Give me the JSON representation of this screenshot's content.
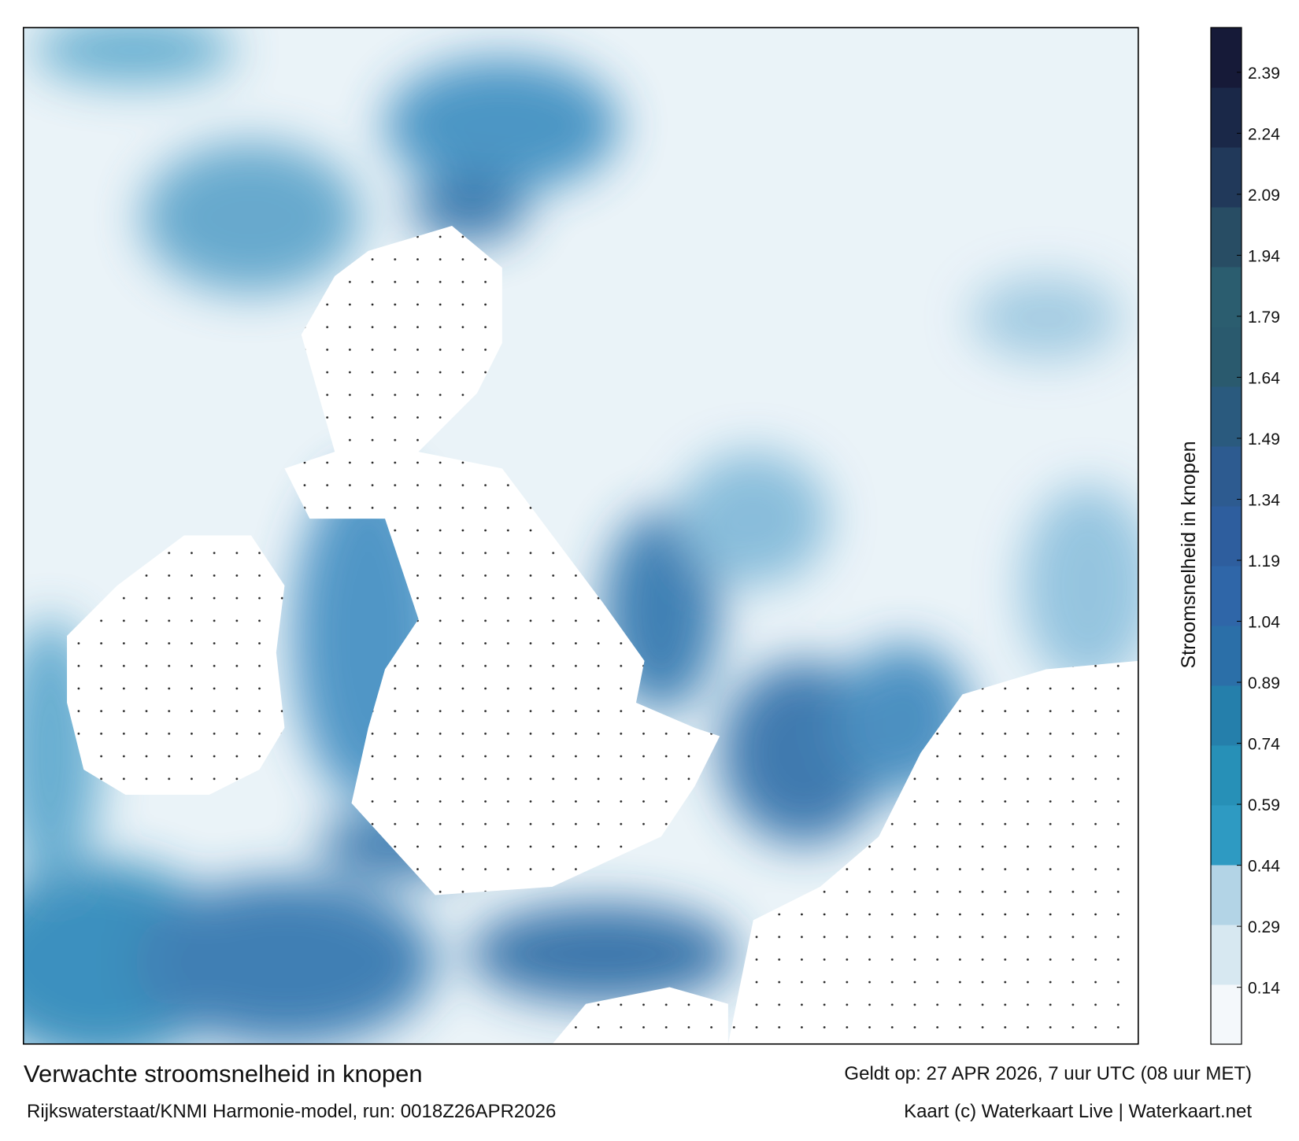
{
  "map": {
    "title": "Verwachte stroomsnelheid in knopen",
    "subtitle": "Rijkswaterstaat/KNMI Harmonie-model, run: 0018Z26APR2026",
    "valid_time": "Geldt op: 27 APR 2026, 7 uur UTC (08 uur MET)",
    "credit": "Kaart (c) Waterkaart Live | Waterkaart.net",
    "colorbar": {
      "label": "Stroomsnelheid in knopen",
      "ylim": [
        0,
        2.5
      ],
      "ticks": [
        0.14,
        0.29,
        0.44,
        0.59,
        0.74,
        0.89,
        1.04,
        1.19,
        1.34,
        1.49,
        1.64,
        1.79,
        1.94,
        2.09,
        2.24,
        2.39
      ],
      "colors": [
        "#f4f8fb",
        "#d7e8f1",
        "#b3d4e6",
        "#2e9ac2",
        "#2790b7",
        "#257fab",
        "#2b6fa8",
        "#2f66a8",
        "#2e5e9e",
        "#2d5b90",
        "#2a5a7e",
        "#2a5a6e",
        "#2b5d6f",
        "#284d64",
        "#21395a",
        "#1a2848",
        "#161a38"
      ]
    }
  }
}
